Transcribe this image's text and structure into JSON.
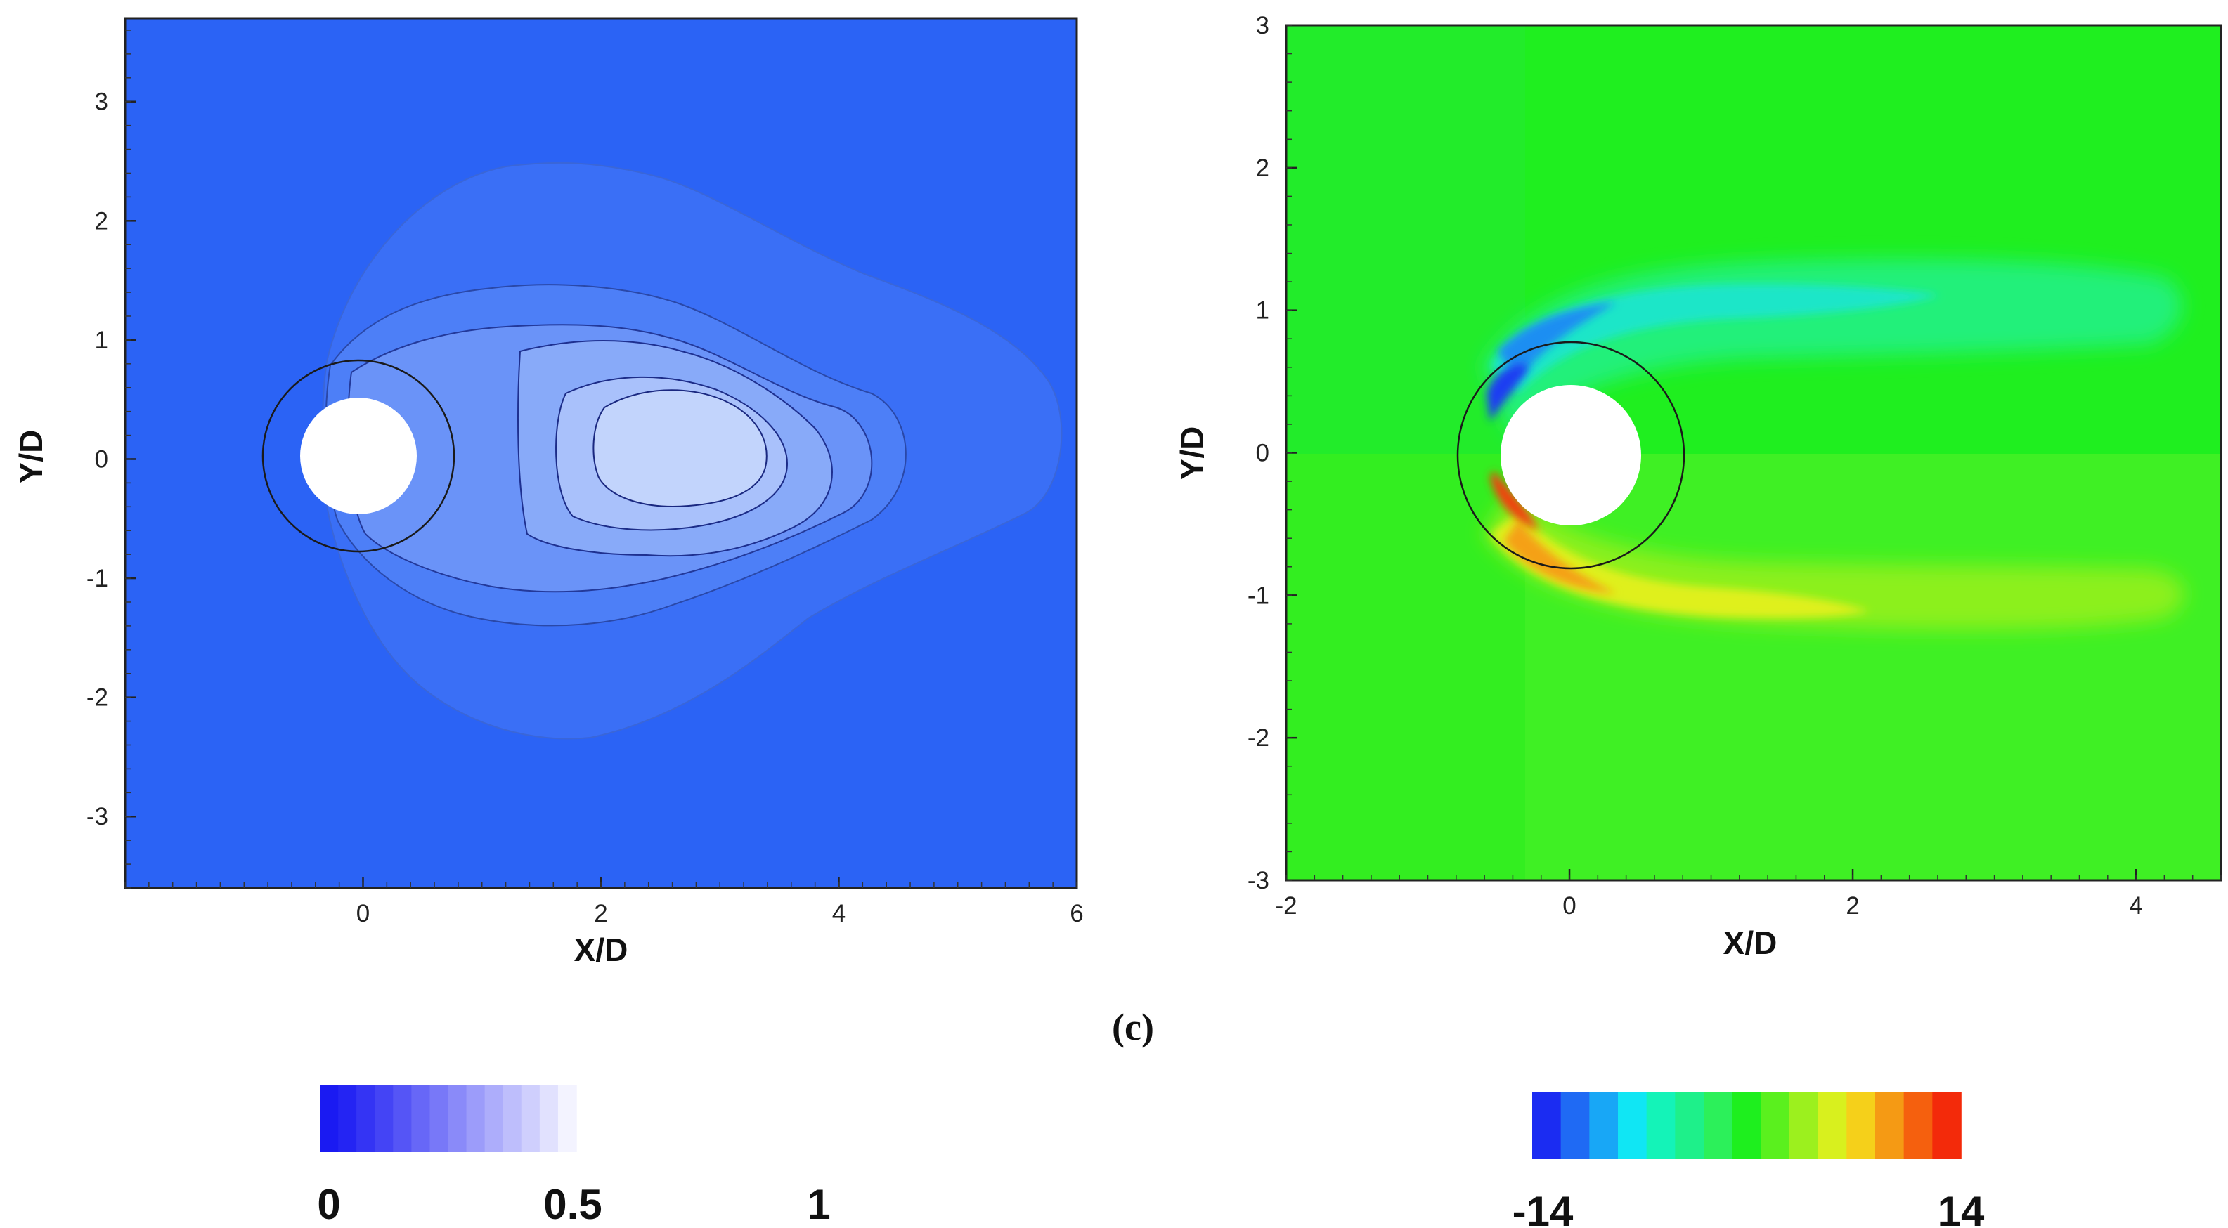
{
  "caption": "(c)",
  "chart_data": [
    {
      "type": "heatmap",
      "xlabel": "X/D",
      "ylabel": "Y/D",
      "xlim": [
        -2,
        6
      ],
      "ylim": [
        -3.6,
        3.7
      ],
      "xticks": [
        "0",
        "2",
        "4",
        "6"
      ],
      "yticks": [
        "3",
        "2",
        "1",
        "0",
        "-1",
        "-2",
        "-3"
      ],
      "background_color": "#2b63f5",
      "cylinder": {
        "center": [
          0,
          0
        ],
        "diameter": 1.0,
        "fill": "#ffffff"
      },
      "reference_circle": {
        "center": [
          0,
          0
        ],
        "diameter": 1.6
      },
      "contour_levels": [
        {
          "color": "#3a6ff6"
        },
        {
          "color": "#4d7ff7"
        },
        {
          "color": "#6a93f8"
        },
        {
          "color": "#88aaf9"
        },
        {
          "color": "#a9c1fb"
        },
        {
          "color": "#c2d4fc"
        }
      ],
      "colorbar": {
        "colors": [
          "#1a1af2",
          "#2424f3",
          "#3434f4",
          "#4444f5",
          "#5555f6",
          "#6767f7",
          "#7878f8",
          "#8a8af9",
          "#9c9cfa",
          "#adadfb",
          "#bebefc",
          "#cfcffd",
          "#e1e1fe",
          "#f3f3ff"
        ],
        "ticks": [
          "0",
          "0.5",
          "1"
        ]
      }
    },
    {
      "type": "heatmap",
      "xlabel": "X/D",
      "ylabel": "Y/D",
      "xlim": [
        -2,
        4.6
      ],
      "ylim": [
        -3,
        3
      ],
      "xticks": [
        "-2",
        "0",
        "2",
        "4"
      ],
      "yticks": [
        "3",
        "2",
        "1",
        "0",
        "-1",
        "-2",
        "-3"
      ],
      "background_color": "#1fef1f",
      "cylinder": {
        "center": [
          0,
          0
        ],
        "diameter": 1.0,
        "fill": "#ffffff"
      },
      "reference_circle": {
        "center": [
          0,
          0
        ],
        "diameter": 1.6
      },
      "colorbar": {
        "colors": [
          "#1b2cf2",
          "#1f6af4",
          "#18a7f6",
          "#10e6f4",
          "#14f3b8",
          "#1ef08a",
          "#2cf05a",
          "#1eef1e",
          "#5af01e",
          "#9cf01e",
          "#d8f01e",
          "#f5d01a",
          "#f59a14",
          "#f5600e",
          "#f32a0a"
        ],
        "ticks": [
          "-14",
          "14"
        ]
      }
    }
  ]
}
